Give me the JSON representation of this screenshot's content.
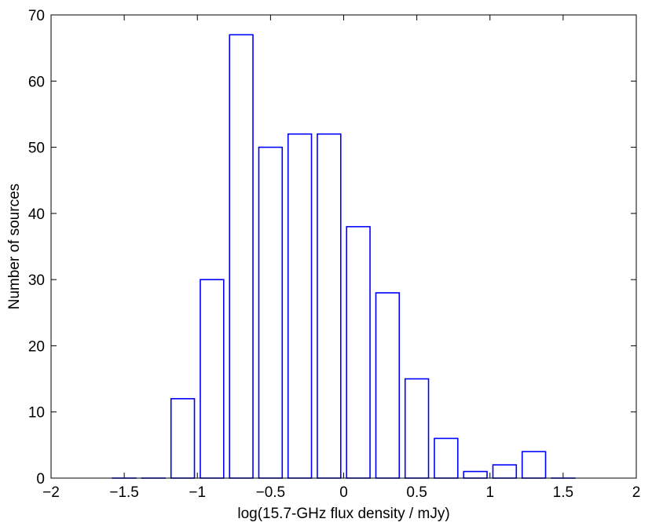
{
  "chart_data": {
    "type": "bar",
    "subtype": "histogram",
    "title": "",
    "xlabel": "log(15.7-GHz flux density / mJy)",
    "ylabel": "Number of sources",
    "xlim": [
      -2,
      2
    ],
    "ylim": [
      0,
      70
    ],
    "xticks": [
      -2,
      -1.5,
      -1,
      -0.5,
      0,
      0.5,
      1,
      1.5,
      2
    ],
    "xtick_labels": [
      "−2",
      "−1.5",
      "−1",
      "−0.5",
      "0",
      "0.5",
      "1",
      "1.5",
      "2"
    ],
    "yticks": [
      0,
      10,
      20,
      30,
      40,
      50,
      60,
      70
    ],
    "ytick_labels": [
      "0",
      "10",
      "20",
      "30",
      "40",
      "50",
      "60",
      "70"
    ],
    "bin_width": 0.2,
    "bar_width_fraction": 0.8,
    "bin_centers": [
      -1.5,
      -1.3,
      -1.1,
      -0.9,
      -0.7,
      -0.5,
      -0.3,
      -0.1,
      0.1,
      0.3,
      0.5,
      0.7,
      0.9,
      1.1,
      1.3,
      1.5
    ],
    "values": [
      0,
      0,
      12,
      30,
      67,
      50,
      52,
      52,
      38,
      28,
      15,
      6,
      1,
      2,
      4,
      0
    ],
    "bar_edge_color": "#0000ff",
    "bar_fill_color": "#ffffff",
    "grid": false,
    "legend": "none"
  }
}
